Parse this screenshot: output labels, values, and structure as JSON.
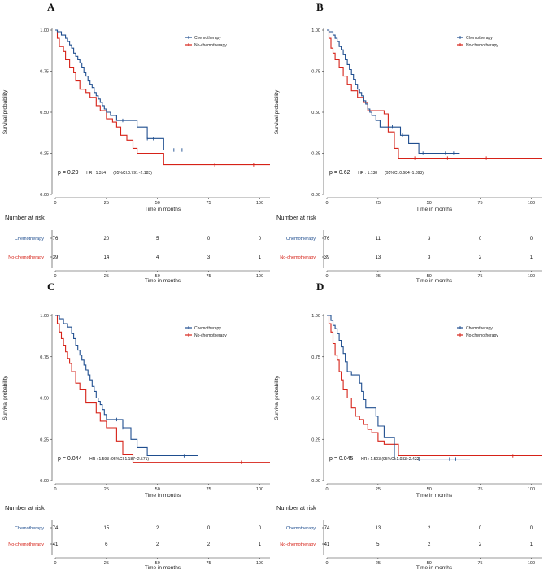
{
  "colors": {
    "chemo": "#1f4e8f",
    "nochemo": "#d62218"
  },
  "chart_data": [
    {
      "type": "line",
      "panel": "A",
      "xlabel": "Time in months",
      "ylabel": "Survival probability",
      "xlim": [
        0,
        105
      ],
      "ylim": [
        0,
        1
      ],
      "xticks": [
        "0",
        "25",
        "50",
        "75",
        "100"
      ],
      "yticks": [
        "0.00",
        "0.25",
        "0.50",
        "0.75",
        "1.00"
      ],
      "legend": [
        "Chemotherapy",
        "No-chemotherapy"
      ],
      "p_value": "p = 0.29",
      "hr_text": "HR : 1.314",
      "ci_text": "(95%CI:0.791~2.183)",
      "series": [
        {
          "name": "Chemotherapy",
          "color": "#1f4e8f",
          "x": [
            0,
            1,
            3,
            5,
            6,
            7,
            8,
            9,
            10,
            11,
            12,
            13,
            14,
            15,
            16,
            17,
            18,
            19,
            20,
            21,
            22,
            23,
            24,
            25,
            27,
            30,
            33,
            35,
            38,
            40,
            45,
            52,
            53,
            58,
            65
          ],
          "y": [
            1,
            0.99,
            0.97,
            0.95,
            0.93,
            0.91,
            0.89,
            0.86,
            0.84,
            0.82,
            0.8,
            0.77,
            0.74,
            0.72,
            0.69,
            0.67,
            0.65,
            0.62,
            0.6,
            0.58,
            0.56,
            0.54,
            0.52,
            0.5,
            0.48,
            0.45,
            0.45,
            0.45,
            0.45,
            0.41,
            0.34,
            0.34,
            0.27,
            0.27,
            0.27
          ],
          "censors_x": [
            33,
            40,
            45,
            48,
            58,
            62
          ]
        },
        {
          "name": "No-chemotherapy",
          "color": "#d62218",
          "x": [
            0,
            1,
            2,
            4,
            5,
            7,
            9,
            10,
            12,
            15,
            17,
            20,
            22,
            25,
            28,
            30,
            32,
            35,
            38,
            40,
            53,
            60,
            80,
            100,
            105
          ],
          "y": [
            1,
            0.95,
            0.9,
            0.87,
            0.82,
            0.77,
            0.74,
            0.69,
            0.64,
            0.62,
            0.59,
            0.54,
            0.51,
            0.46,
            0.44,
            0.41,
            0.36,
            0.33,
            0.28,
            0.25,
            0.18,
            0.18,
            0.18,
            0.18,
            0.18
          ],
          "censors_x": [
            40,
            78,
            97
          ]
        }
      ],
      "risk_table": {
        "title": "Number at risk",
        "xlabel": "Time in months",
        "times": [
          "0",
          "25",
          "50",
          "75",
          "100"
        ],
        "rows": [
          {
            "label": "Chemotherapy",
            "values": [
              "76",
              "20",
              "5",
              "0",
              "0"
            ]
          },
          {
            "label": "No-chemotherapy",
            "values": [
              "39",
              "14",
              "4",
              "3",
              "1"
            ]
          }
        ]
      }
    },
    {
      "type": "line",
      "panel": "B",
      "xlabel": "Time in months",
      "ylabel": "Survival probability",
      "xlim": [
        0,
        105
      ],
      "ylim": [
        0,
        1
      ],
      "xticks": [
        "0",
        "25",
        "50",
        "75",
        "100"
      ],
      "yticks": [
        "0.00",
        "0.25",
        "0.50",
        "0.75",
        "1.00"
      ],
      "legend": [
        "Chemotherapy",
        "No-chemotherapy"
      ],
      "p_value": "p = 0.62",
      "hr_text": "HR : 1.138",
      "ci_text": "(95%CI:0.684~1.893)",
      "series": [
        {
          "name": "Chemotherapy",
          "color": "#1f4e8f",
          "x": [
            0,
            1,
            3,
            4,
            5,
            6,
            7,
            8,
            9,
            10,
            11,
            12,
            13,
            14,
            15,
            16,
            17,
            18,
            19,
            20,
            21,
            22,
            24,
            26,
            30,
            33,
            36,
            40,
            45,
            50,
            65
          ],
          "y": [
            1,
            0.99,
            0.97,
            0.95,
            0.93,
            0.9,
            0.88,
            0.85,
            0.82,
            0.79,
            0.76,
            0.73,
            0.7,
            0.67,
            0.64,
            0.62,
            0.6,
            0.57,
            0.55,
            0.52,
            0.5,
            0.48,
            0.45,
            0.41,
            0.41,
            0.41,
            0.36,
            0.31,
            0.25,
            0.25,
            0.25
          ],
          "censors_x": [
            32,
            37,
            47,
            58,
            62
          ]
        },
        {
          "name": "No-chemotherapy",
          "color": "#d62218",
          "x": [
            0,
            1,
            2,
            3,
            4,
            6,
            8,
            10,
            12,
            15,
            18,
            20,
            22,
            25,
            28,
            30,
            33,
            35,
            45,
            60,
            80,
            105
          ],
          "y": [
            1,
            0.95,
            0.89,
            0.86,
            0.82,
            0.77,
            0.72,
            0.67,
            0.63,
            0.59,
            0.56,
            0.51,
            0.51,
            0.51,
            0.49,
            0.38,
            0.28,
            0.22,
            0.22,
            0.22,
            0.22,
            0.22
          ],
          "censors_x": [
            43,
            59,
            78
          ]
        }
      ],
      "risk_table": {
        "title": "Number at risk",
        "xlabel": "Time in months",
        "times": [
          "0",
          "25",
          "50",
          "75",
          "100"
        ],
        "rows": [
          {
            "label": "Chemotherapy",
            "values": [
              "76",
              "11",
              "3",
              "0",
              "0"
            ]
          },
          {
            "label": "No-chemotherapy",
            "values": [
              "39",
              "13",
              "3",
              "2",
              "1"
            ]
          }
        ]
      }
    },
    {
      "type": "line",
      "panel": "C",
      "xlabel": "Time in months",
      "ylabel": "Survival probability",
      "xlim": [
        0,
        105
      ],
      "ylim": [
        0,
        1
      ],
      "xticks": [
        "0",
        "25",
        "50",
        "75",
        "100"
      ],
      "yticks": [
        "0.00",
        "0.25",
        "0.50",
        "0.75",
        "1.00"
      ],
      "legend": [
        "Chemotherapy",
        "No-chemotherapy"
      ],
      "p_value": "p = 0.044",
      "hr_text": "HR : 1.593 (95%CI:1.187~2.571)",
      "ci_text": "",
      "series": [
        {
          "name": "Chemotherapy",
          "color": "#1f4e8f",
          "x": [
            0,
            2,
            4,
            6,
            8,
            9,
            10,
            11,
            12,
            13,
            14,
            15,
            16,
            17,
            18,
            19,
            20,
            21,
            22,
            23,
            24,
            25,
            27,
            30,
            33,
            37,
            40,
            45,
            55,
            70
          ],
          "y": [
            1,
            0.98,
            0.95,
            0.93,
            0.89,
            0.86,
            0.82,
            0.79,
            0.76,
            0.73,
            0.7,
            0.67,
            0.64,
            0.61,
            0.57,
            0.54,
            0.5,
            0.48,
            0.46,
            0.43,
            0.4,
            0.37,
            0.37,
            0.37,
            0.32,
            0.25,
            0.2,
            0.15,
            0.15,
            0.15
          ],
          "censors_x": [
            30,
            33,
            63
          ]
        },
        {
          "name": "No-chemotherapy",
          "color": "#d62218",
          "x": [
            0,
            1,
            2,
            3,
            4,
            5,
            6,
            7,
            8,
            10,
            12,
            15,
            17,
            20,
            22,
            25,
            28,
            30,
            33,
            35,
            38,
            50,
            70,
            105
          ],
          "y": [
            1,
            0.95,
            0.9,
            0.86,
            0.82,
            0.78,
            0.74,
            0.71,
            0.66,
            0.59,
            0.55,
            0.47,
            0.47,
            0.41,
            0.36,
            0.32,
            0.32,
            0.24,
            0.16,
            0.16,
            0.11,
            0.11,
            0.11,
            0.11
          ],
          "censors_x": [
            91
          ]
        }
      ],
      "risk_table": {
        "title": "Number at risk",
        "xlabel": "Time in months",
        "times": [
          "0",
          "25",
          "50",
          "75",
          "100"
        ],
        "rows": [
          {
            "label": "Chemotherapy",
            "values": [
              "74",
              "15",
              "2",
              "0",
              "0"
            ]
          },
          {
            "label": "No-chemotherapy",
            "values": [
              "41",
              "6",
              "2",
              "2",
              "1"
            ]
          }
        ]
      }
    },
    {
      "type": "line",
      "panel": "D",
      "xlabel": "Time in months",
      "ylabel": "Survival probability",
      "xlim": [
        0,
        105
      ],
      "ylim": [
        0,
        1
      ],
      "xticks": [
        "0",
        "25",
        "50",
        "75",
        "100"
      ],
      "yticks": [
        "0.00",
        "0.25",
        "0.50",
        "0.75",
        "1.00"
      ],
      "legend": [
        "Chemotherapy",
        "No-chemotherapy"
      ],
      "p_value": "p = 0.045",
      "hr_text": "HR : 1.503 (95%CI:1.033~2.422)",
      "ci_text": "",
      "series": [
        {
          "name": "Chemotherapy",
          "color": "#1f4e8f",
          "x": [
            0,
            2,
            3,
            4,
            5,
            6,
            7,
            8,
            9,
            10,
            12,
            14,
            16,
            17,
            18,
            19,
            20,
            22,
            24,
            25,
            28,
            30,
            33,
            38,
            50,
            70
          ],
          "y": [
            1,
            0.97,
            0.94,
            0.92,
            0.89,
            0.85,
            0.81,
            0.77,
            0.72,
            0.66,
            0.64,
            0.64,
            0.59,
            0.54,
            0.49,
            0.44,
            0.44,
            0.44,
            0.39,
            0.33,
            0.26,
            0.26,
            0.13,
            0.13,
            0.13,
            0.13
          ],
          "censors_x": [
            45,
            60,
            63
          ]
        },
        {
          "name": "No-chemotherapy",
          "color": "#d62218",
          "x": [
            0,
            1,
            2,
            3,
            4,
            5,
            6,
            7,
            8,
            10,
            12,
            14,
            16,
            18,
            20,
            22,
            25,
            28,
            30,
            35,
            40,
            60,
            105
          ],
          "y": [
            1,
            0.95,
            0.9,
            0.83,
            0.76,
            0.73,
            0.66,
            0.61,
            0.55,
            0.5,
            0.44,
            0.39,
            0.37,
            0.34,
            0.31,
            0.29,
            0.24,
            0.22,
            0.22,
            0.15,
            0.15,
            0.15,
            0.15
          ],
          "censors_x": [
            91
          ]
        }
      ],
      "risk_table": {
        "title": "Number at risk",
        "xlabel": "Time in months",
        "times": [
          "0",
          "25",
          "50",
          "75",
          "100"
        ],
        "rows": [
          {
            "label": "Chemotherapy",
            "values": [
              "74",
              "13",
              "2",
              "0",
              "0"
            ]
          },
          {
            "label": "No-chemotherapy",
            "values": [
              "41",
              "5",
              "2",
              "2",
              "1"
            ]
          }
        ]
      }
    }
  ]
}
